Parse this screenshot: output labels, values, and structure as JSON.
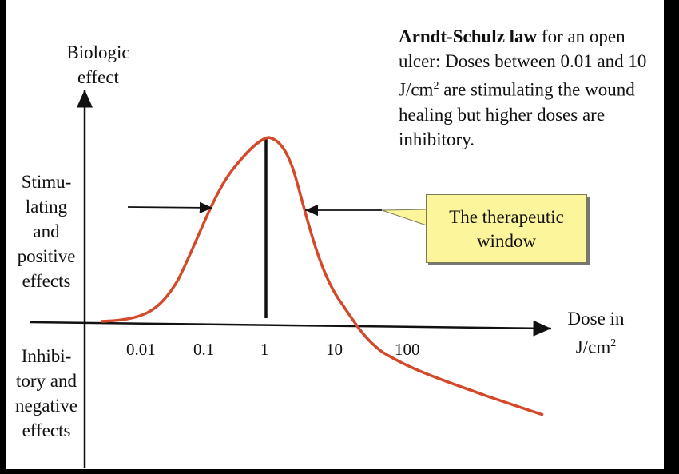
{
  "y_axis_label": [
    "Biologic",
    "effect"
  ],
  "stimulating_label": [
    "Stimu-",
    "lating",
    "and",
    "positive",
    "effects"
  ],
  "inhibitory_label": [
    "Inhibi-",
    "tory and",
    "negative",
    "effects"
  ],
  "law_title": "Arndt-Schulz law",
  "law_text_1": " for an open ulcer: Doses between 0.01 and 10 J/cm",
  "law_sup": "2",
  "law_text_2": " are stimulating the wound healing but higher doses are inhibitory.",
  "x_axis_label": [
    "Dose in",
    "J/cm",
    "2"
  ],
  "ticks": [
    "0.01",
    "0.1",
    "1",
    "10",
    "100"
  ],
  "callout": [
    "The therapeutic",
    "window"
  ],
  "colors": {
    "curve": "#d4492a",
    "axis": "#111111",
    "callout_bg": "#fcf59b",
    "frame": "#000000"
  }
}
